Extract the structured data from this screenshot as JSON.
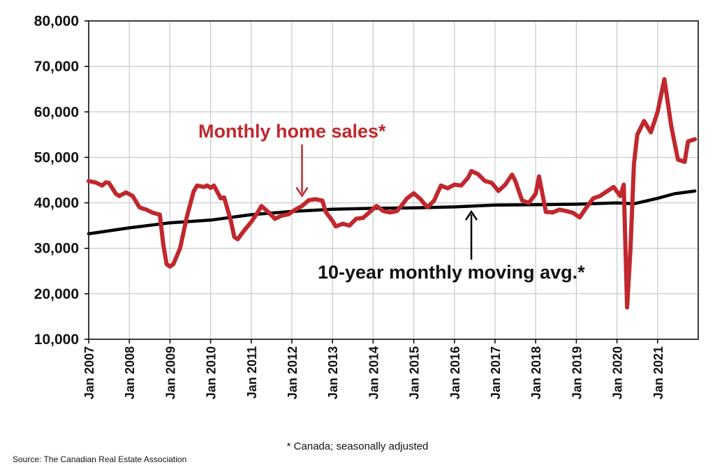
{
  "chart_data": {
    "type": "line",
    "title": "",
    "xlabel": "",
    "ylabel": "",
    "ylim": [
      10000,
      80000
    ],
    "yticks": [
      "10,000",
      "20,000",
      "30,000",
      "40,000",
      "50,000",
      "60,000",
      "70,000",
      "80,000"
    ],
    "xticks": [
      "Jan 2007",
      "Jan 2008",
      "Jan 2009",
      "Jan 2010",
      "Jan 2011",
      "Jan 2012",
      "Jan 2013",
      "Jan 2014",
      "Jan 2015",
      "Jan 2016",
      "Jan 2017",
      "Jan 2018",
      "Jan 2019",
      "Jan 2020",
      "Jan 2021"
    ],
    "grid": true,
    "colors": {
      "sales": "#c0282d",
      "avg": "#000000",
      "grid": "#c8c8c8"
    },
    "series": [
      {
        "name": "Monthly home sales*",
        "points": [
          [
            "2007-01",
            44800
          ],
          [
            "2007-03",
            44500
          ],
          [
            "2007-05",
            43800
          ],
          [
            "2007-06",
            44500
          ],
          [
            "2007-07",
            44400
          ],
          [
            "2007-09",
            42000
          ],
          [
            "2007-10",
            41500
          ],
          [
            "2007-12",
            42300
          ],
          [
            "2008-02",
            41500
          ],
          [
            "2008-04",
            39000
          ],
          [
            "2008-06",
            38500
          ],
          [
            "2008-08",
            37800
          ],
          [
            "2008-10",
            37400
          ],
          [
            "2008-11",
            31000
          ],
          [
            "2008-12",
            26500
          ],
          [
            "2009-01",
            26000
          ],
          [
            "2009-02",
            26500
          ],
          [
            "2009-04",
            30000
          ],
          [
            "2009-06",
            37000
          ],
          [
            "2009-08",
            42500
          ],
          [
            "2009-09",
            43800
          ],
          [
            "2009-11",
            43500
          ],
          [
            "2009-12",
            43800
          ],
          [
            "2010-01",
            43300
          ],
          [
            "2010-02",
            43800
          ],
          [
            "2010-04",
            41000
          ],
          [
            "2010-05",
            41200
          ],
          [
            "2010-07",
            36000
          ],
          [
            "2010-08",
            32500
          ],
          [
            "2010-09",
            32000
          ],
          [
            "2010-11",
            34000
          ],
          [
            "2011-01",
            35800
          ],
          [
            "2011-03",
            38000
          ],
          [
            "2011-04",
            39300
          ],
          [
            "2011-06",
            38000
          ],
          [
            "2011-08",
            36500
          ],
          [
            "2011-10",
            37200
          ],
          [
            "2011-12",
            37500
          ],
          [
            "2012-02",
            38500
          ],
          [
            "2012-04",
            39300
          ],
          [
            "2012-06",
            40600
          ],
          [
            "2012-08",
            40800
          ],
          [
            "2012-10",
            40500
          ],
          [
            "2012-11",
            38000
          ],
          [
            "2013-01",
            36000
          ],
          [
            "2013-02",
            34800
          ],
          [
            "2013-04",
            35400
          ],
          [
            "2013-06",
            35000
          ],
          [
            "2013-08",
            36500
          ],
          [
            "2013-10",
            36700
          ],
          [
            "2013-12",
            38000
          ],
          [
            "2014-02",
            39300
          ],
          [
            "2014-04",
            38200
          ],
          [
            "2014-06",
            37900
          ],
          [
            "2014-08",
            38200
          ],
          [
            "2014-09",
            39000
          ],
          [
            "2014-11",
            41000
          ],
          [
            "2015-01",
            42100
          ],
          [
            "2015-03",
            40800
          ],
          [
            "2015-05",
            39000
          ],
          [
            "2015-07",
            40500
          ],
          [
            "2015-09",
            43800
          ],
          [
            "2015-11",
            43200
          ],
          [
            "2016-01",
            44000
          ],
          [
            "2016-03",
            43800
          ],
          [
            "2016-05",
            45500
          ],
          [
            "2016-06",
            47000
          ],
          [
            "2016-08",
            46300
          ],
          [
            "2016-10",
            44800
          ],
          [
            "2016-12",
            44400
          ],
          [
            "2017-02",
            42600
          ],
          [
            "2017-04",
            44000
          ],
          [
            "2017-06",
            46200
          ],
          [
            "2017-07",
            44800
          ],
          [
            "2017-09",
            40500
          ],
          [
            "2017-11",
            40000
          ],
          [
            "2018-01",
            42000
          ],
          [
            "2018-02",
            45800
          ],
          [
            "2018-04",
            38000
          ],
          [
            "2018-06",
            37900
          ],
          [
            "2018-08",
            38500
          ],
          [
            "2018-10",
            38200
          ],
          [
            "2018-12",
            37800
          ],
          [
            "2019-02",
            36800
          ],
          [
            "2019-04",
            39000
          ],
          [
            "2019-06",
            41000
          ],
          [
            "2019-08",
            41500
          ],
          [
            "2019-10",
            42500
          ],
          [
            "2019-12",
            43500
          ],
          [
            "2020-02",
            41500
          ],
          [
            "2020-03",
            44000
          ],
          [
            "2020-04",
            17000
          ],
          [
            "2020-05",
            30000
          ],
          [
            "2020-06",
            48500
          ],
          [
            "2020-07",
            55000
          ],
          [
            "2020-09",
            58000
          ],
          [
            "2020-11",
            55500
          ],
          [
            "2021-01",
            60000
          ],
          [
            "2021-03",
            67200
          ],
          [
            "2021-05",
            57000
          ],
          [
            "2021-07",
            49500
          ],
          [
            "2021-09",
            49000
          ],
          [
            "2021-10",
            53500
          ],
          [
            "2021-12",
            54000
          ]
        ]
      },
      {
        "name": "10-year monthly moving avg.*",
        "points": [
          [
            "2007-01",
            33200
          ],
          [
            "2008-01",
            34500
          ],
          [
            "2009-01",
            35600
          ],
          [
            "2010-01",
            36200
          ],
          [
            "2011-01",
            37400
          ],
          [
            "2012-01",
            38100
          ],
          [
            "2013-01",
            38600
          ],
          [
            "2014-01",
            38800
          ],
          [
            "2015-01",
            38900
          ],
          [
            "2016-01",
            39100
          ],
          [
            "2017-01",
            39500
          ],
          [
            "2018-01",
            39600
          ],
          [
            "2019-01",
            39700
          ],
          [
            "2020-01",
            40000
          ],
          [
            "2020-06",
            39800
          ],
          [
            "2021-01",
            41000
          ],
          [
            "2021-06",
            42000
          ],
          [
            "2021-12",
            42600
          ]
        ]
      }
    ],
    "annotations": [
      {
        "text": "Monthly home sales*",
        "series": "Monthly home sales*",
        "points_to": [
          "2012-04",
          40300
        ]
      },
      {
        "text": "10-year monthly moving avg.*",
        "series": "10-year monthly moving avg.*",
        "points_to": [
          "2016-06",
          39300
        ]
      }
    ]
  },
  "footnote": "* Canada; seasonally adjusted",
  "source": "Source: The Canadian Real Estate Association"
}
